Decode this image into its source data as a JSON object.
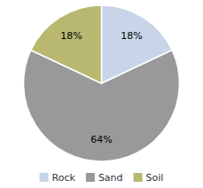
{
  "chart_data": {
    "type": "pie",
    "categories": [
      "Rock",
      "Sand",
      "Soil"
    ],
    "values": [
      18,
      64,
      18
    ],
    "value_labels": [
      "18%",
      "64%",
      "18%"
    ],
    "colors": [
      "#c8d4e8",
      "#999999",
      "#b8b870"
    ],
    "data_labels": true,
    "legend": "bottom"
  }
}
